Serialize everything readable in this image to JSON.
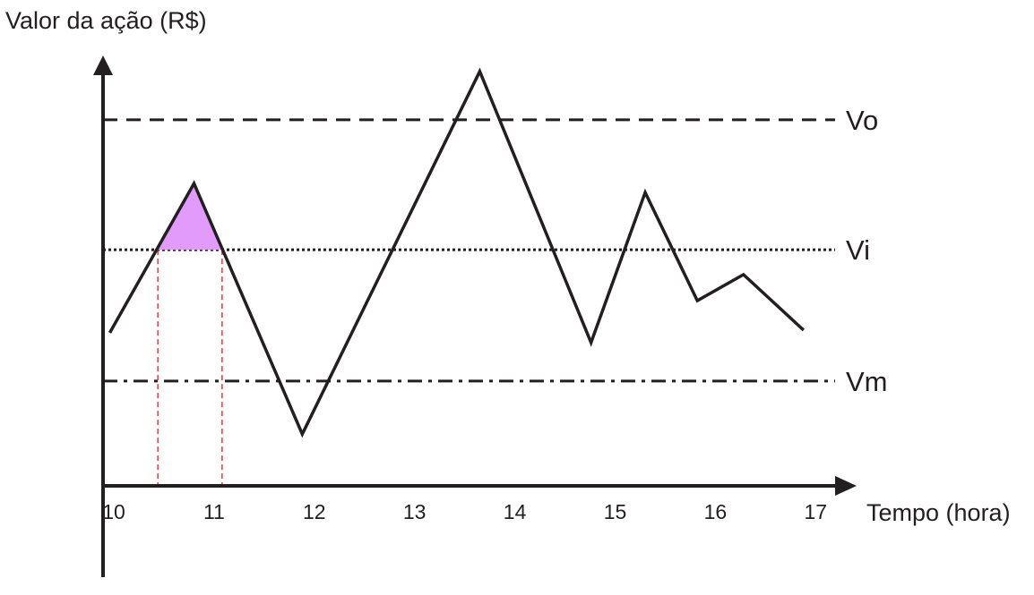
{
  "chart_data": {
    "type": "line",
    "title": "",
    "ylabel": "Valor da ação (R$)",
    "xlabel": "Tempo (hora)",
    "xlim": [
      10,
      17
    ],
    "ylim": [
      0,
      100
    ],
    "x_ticks": [
      "10",
      "11",
      "12",
      "13",
      "14",
      "15",
      "16",
      "17"
    ],
    "grid": false,
    "series": [
      {
        "x": [
          9.96,
          10.8,
          11.88,
          13.65,
          14.76,
          15.3,
          15.82,
          16.28,
          16.88
        ],
        "y": [
          35.8,
          70.7,
          12.1,
          96.9,
          33.5,
          68.6,
          43.3,
          49.4,
          36.4
        ],
        "color": "#231f20"
      }
    ],
    "reference_lines": [
      {
        "label": "Vo",
        "y": 85.6,
        "style": "dashed"
      },
      {
        "label": "Vi",
        "y": 55.2,
        "style": "dotted"
      },
      {
        "label": "Vm",
        "y": 24.5,
        "style": "dash-dot"
      }
    ],
    "highlight": {
      "x_start": 10.44,
      "x_end": 11.08,
      "fill_color": "#e29bfb",
      "marker_color": "#ff3b3b"
    }
  }
}
